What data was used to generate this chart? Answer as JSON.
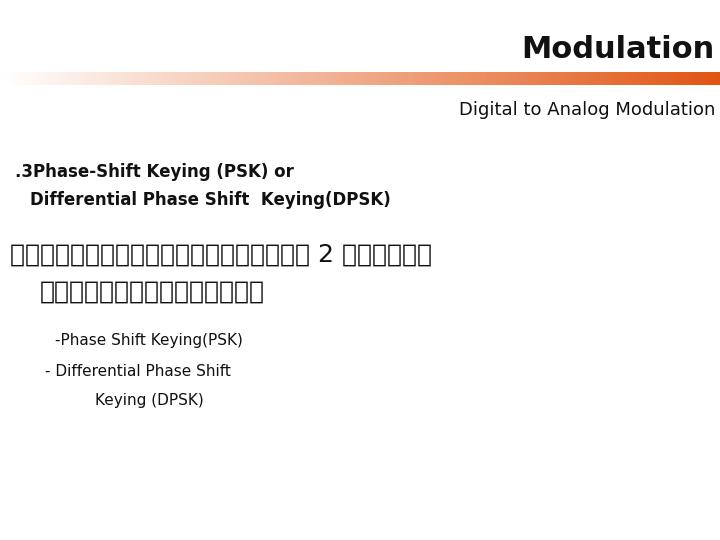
{
  "title": "Modulation",
  "subtitle": "Digital to Analog Modulation",
  "line1": ".3Phase-Shift Keying (PSK) or",
  "line2": "Differential Phase Shift  Keying(DPSK)",
  "thai_line1": "การเข้ารหัสประเภทที่ 2 ของการ",
  "thai_line2": "เข้ารหัสเชิงเฟส",
  "bullet1": "-Phase Shift Keying(PSK)",
  "bullet2": "- Differential Phase Shift",
  "bullet3": "Keying (DPSK)",
  "bg_color": "#ffffff",
  "title_color": "#111111",
  "text_color": "#111111"
}
